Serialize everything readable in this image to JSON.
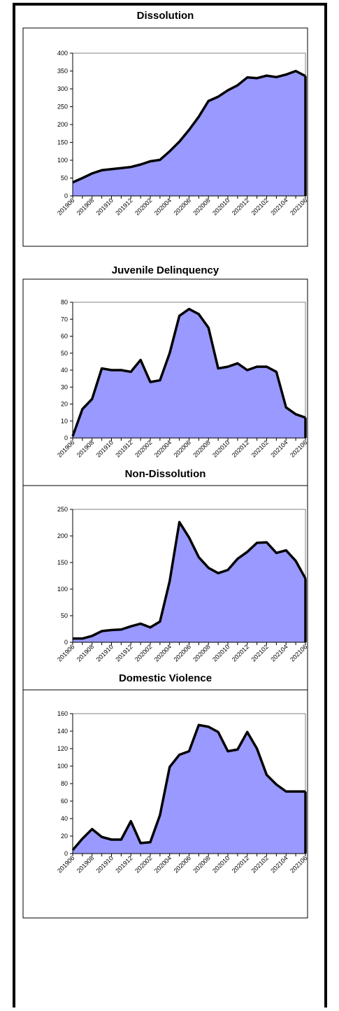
{
  "colors": {
    "fill": "#9999FF",
    "stroke": "#000000",
    "plot_border": "#808080"
  },
  "chart_data": [
    {
      "type": "area",
      "title": "Dissolution",
      "xlabel": "",
      "ylabel": "",
      "ylim": [
        0,
        400
      ],
      "yticks": [
        0,
        50,
        100,
        150,
        200,
        250,
        300,
        350,
        400
      ],
      "x_tick_labels": [
        "201906",
        "201908",
        "201910",
        "201912",
        "202002",
        "202004",
        "202006",
        "202008",
        "202010",
        "202012",
        "202102",
        "202104",
        "202106"
      ],
      "x": [
        "201906",
        "201907",
        "201908",
        "201909",
        "201910",
        "201911",
        "201912",
        "202001",
        "202002",
        "202003",
        "202004",
        "202005",
        "202006",
        "202007",
        "202008",
        "202009",
        "202010",
        "202011",
        "202012",
        "202101",
        "202102",
        "202103",
        "202104",
        "202105",
        "202106"
      ],
      "values": [
        38,
        50,
        63,
        72,
        75,
        78,
        81,
        88,
        97,
        101,
        125,
        152,
        185,
        222,
        266,
        278,
        296,
        310,
        332,
        330,
        337,
        333,
        340,
        350,
        336
      ],
      "grid": false,
      "legend": "none"
    },
    {
      "type": "area",
      "title": "Juvenile Delinquency",
      "xlabel": "",
      "ylabel": "",
      "ylim": [
        0,
        80
      ],
      "yticks": [
        0,
        10,
        20,
        30,
        40,
        50,
        60,
        70,
        80
      ],
      "x_tick_labels": [
        "201906",
        "201908",
        "201910",
        "201912",
        "202002",
        "202004",
        "202006",
        "202008",
        "202010",
        "202012",
        "202102",
        "202104",
        "202106"
      ],
      "x": [
        "201906",
        "201907",
        "201908",
        "201909",
        "201910",
        "201911",
        "201912",
        "202001",
        "202002",
        "202003",
        "202004",
        "202005",
        "202006",
        "202007",
        "202008",
        "202009",
        "202010",
        "202011",
        "202012",
        "202101",
        "202102",
        "202103",
        "202104",
        "202105",
        "202106"
      ],
      "values": [
        1,
        17,
        23,
        41,
        40,
        40,
        39,
        46,
        33,
        34,
        50,
        72,
        76,
        73,
        65,
        41,
        42,
        44,
        40,
        42,
        42,
        39,
        18,
        14,
        12
      ],
      "grid": false,
      "legend": "none"
    },
    {
      "type": "area",
      "title": "Non-Dissolution",
      "xlabel": "",
      "ylabel": "",
      "ylim": [
        0,
        250
      ],
      "yticks": [
        0,
        50,
        100,
        150,
        200,
        250
      ],
      "x_tick_labels": [
        "201906",
        "201908",
        "201910",
        "201912",
        "202002",
        "202004",
        "202006",
        "202008",
        "202010",
        "202012",
        "202102",
        "202104",
        "202106"
      ],
      "x": [
        "201906",
        "201907",
        "201908",
        "201909",
        "201910",
        "201911",
        "201912",
        "202001",
        "202002",
        "202003",
        "202004",
        "202005",
        "202006",
        "202007",
        "202008",
        "202009",
        "202010",
        "202011",
        "202012",
        "202101",
        "202102",
        "202103",
        "202104",
        "202105",
        "202106"
      ],
      "values": [
        7,
        7,
        12,
        21,
        23,
        24,
        30,
        35,
        28,
        39,
        115,
        226,
        197,
        160,
        140,
        130,
        136,
        157,
        170,
        187,
        188,
        168,
        173,
        153,
        120
      ],
      "grid": false,
      "legend": "none"
    },
    {
      "type": "area",
      "title": "Domestic Violence",
      "xlabel": "",
      "ylabel": "",
      "ylim": [
        0,
        160
      ],
      "yticks": [
        0,
        20,
        40,
        60,
        80,
        100,
        120,
        140,
        160
      ],
      "x_tick_labels": [
        "201906",
        "201908",
        "201910",
        "201912",
        "202002",
        "202004",
        "202006",
        "202008",
        "202010",
        "202012",
        "202102",
        "202104",
        "202106"
      ],
      "x": [
        "201906",
        "201907",
        "201908",
        "201909",
        "201910",
        "201911",
        "201912",
        "202001",
        "202002",
        "202003",
        "202004",
        "202005",
        "202006",
        "202007",
        "202008",
        "202009",
        "202010",
        "202011",
        "202012",
        "202101",
        "202102",
        "202103",
        "202104",
        "202105",
        "202106"
      ],
      "values": [
        4,
        17,
        28,
        19,
        16,
        16,
        37,
        12,
        13,
        44,
        99,
        113,
        117,
        147,
        145,
        139,
        117,
        119,
        139,
        120,
        90,
        79,
        71,
        71,
        71
      ],
      "grid": false,
      "legend": "none"
    }
  ]
}
